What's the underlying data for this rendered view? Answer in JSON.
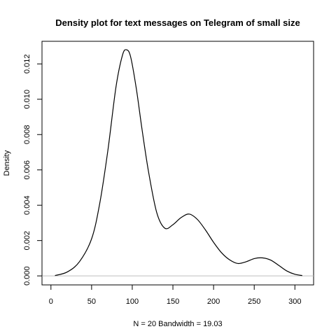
{
  "chart_data": {
    "type": "line",
    "title": "Density plot for text messages on Telegram of small size",
    "xlabel": "N = 20   Bandwidth = 19.03",
    "ylabel": "Density",
    "xlim": [
      -11,
      323
    ],
    "ylim": [
      -0.00051,
      0.01328
    ],
    "x_ticks": [
      0,
      50,
      100,
      150,
      200,
      250,
      300
    ],
    "x_tick_labels": [
      "0",
      "50",
      "100",
      "150",
      "200",
      "250",
      "300"
    ],
    "y_ticks": [
      0.0,
      0.002,
      0.004,
      0.006,
      0.008,
      0.01,
      0.012
    ],
    "y_tick_labels": [
      "0.000",
      "0.002",
      "0.004",
      "0.006",
      "0.008",
      "0.010",
      "0.012"
    ],
    "grid": false,
    "baseline_y": 0,
    "series": [
      {
        "x": [
          5,
          20,
          35,
          50,
          60,
          70,
          80,
          88,
          93,
          98,
          105,
          112,
          120,
          130,
          140,
          150,
          160,
          170,
          180,
          190,
          200,
          210,
          220,
          230,
          240,
          250,
          260,
          270,
          280,
          290,
          300,
          309
        ],
        "y": [
          2e-05,
          0.00022,
          0.0008,
          0.0021,
          0.0041,
          0.0071,
          0.0107,
          0.0125,
          0.0128,
          0.0124,
          0.0106,
          0.0083,
          0.0059,
          0.0036,
          0.0027,
          0.0029,
          0.0033,
          0.0035,
          0.0032,
          0.0026,
          0.0019,
          0.0013,
          0.0009,
          0.0007,
          0.0008,
          0.00098,
          0.00102,
          0.0009,
          0.0006,
          0.00028,
          9e-05,
          2e-05
        ]
      }
    ]
  }
}
